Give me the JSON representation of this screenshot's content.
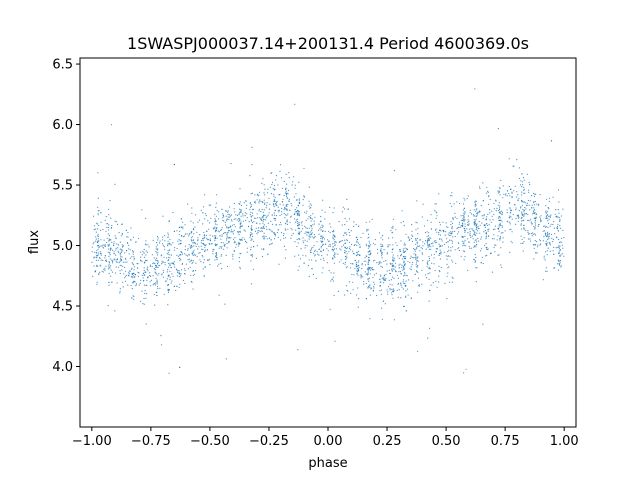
{
  "chart_data": {
    "type": "scatter",
    "title": "1SWASPJ000037.14+200131.4 Period 4600369.0s",
    "xlabel": "phase",
    "ylabel": "flux",
    "xlim": [
      -1.05,
      1.05
    ],
    "ylim": [
      3.5,
      6.55
    ],
    "xticks": [
      -1.0,
      -0.75,
      -0.5,
      -0.25,
      0.0,
      0.25,
      0.5,
      0.75,
      1.0
    ],
    "xtick_labels": [
      "−1.00",
      "−0.75",
      "−0.50",
      "−0.25",
      "0.00",
      "0.25",
      "0.50",
      "0.75",
      "1.00"
    ],
    "yticks": [
      4.0,
      4.5,
      5.0,
      5.5,
      6.0,
      6.5
    ],
    "ytick_labels": [
      "4.0",
      "4.5",
      "5.0",
      "5.5",
      "6.0",
      "6.5"
    ],
    "grid": false,
    "point_color": "#1f77b4",
    "series": [
      {
        "trend_phase": [
          0.0,
          0.05,
          0.1,
          0.15,
          0.2,
          0.25,
          0.3,
          0.35,
          0.4,
          0.45,
          0.5,
          0.55,
          0.6,
          0.65,
          0.7,
          0.75,
          0.8,
          0.85,
          0.9,
          0.95,
          1.0
        ],
        "trend_flux": [
          5.02,
          4.98,
          4.92,
          4.85,
          4.8,
          4.78,
          4.82,
          4.88,
          4.95,
          5.0,
          5.05,
          5.08,
          5.1,
          5.15,
          5.2,
          5.25,
          5.3,
          5.25,
          5.15,
          5.08,
          5.05
        ],
        "scatter_std": 0.15,
        "phase_range": [
          -1.0,
          1.0
        ]
      }
    ]
  }
}
